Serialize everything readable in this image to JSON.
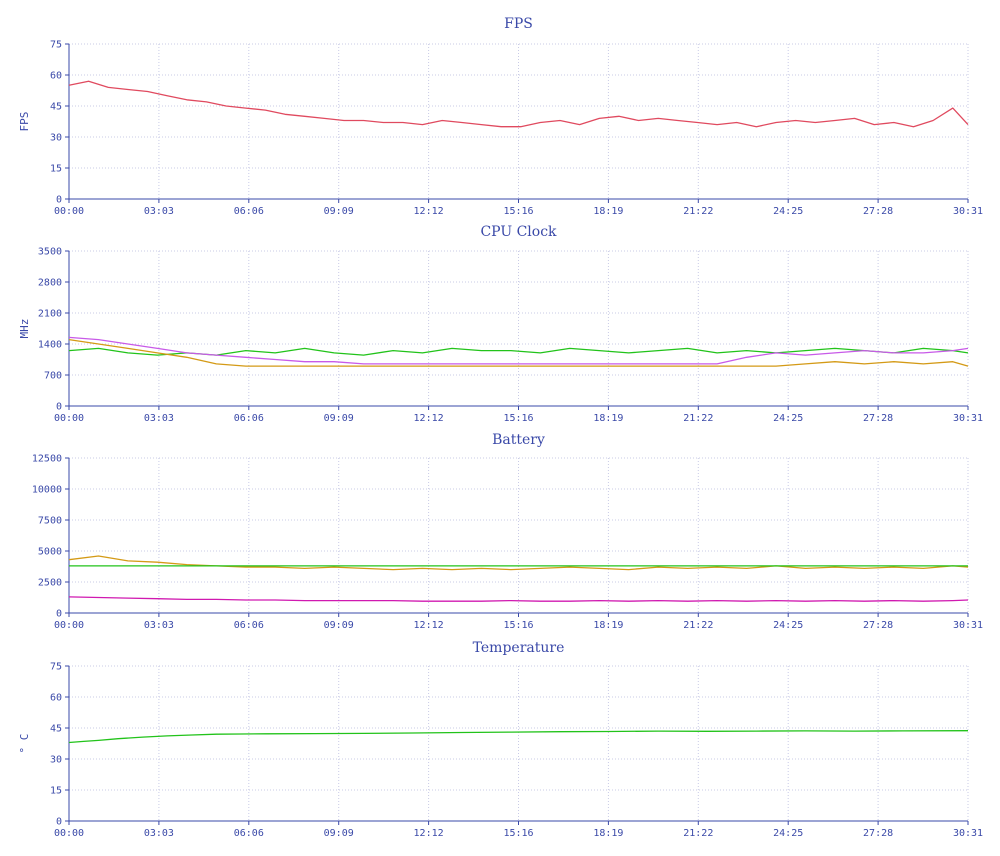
{
  "chart_data": [
    {
      "type": "line",
      "title": "FPS",
      "ylabel": "FPS",
      "xlabel": "",
      "xticks": [
        "00:00",
        "03:03",
        "06:06",
        "09:09",
        "12:12",
        "15:16",
        "18:19",
        "21:22",
        "24:25",
        "27:28",
        "30:31"
      ],
      "yticks": [
        "0",
        "15",
        "30",
        "45",
        "60",
        "75"
      ],
      "xlim_seconds": [
        0,
        1831
      ],
      "ylim": [
        0,
        75
      ],
      "grid": true,
      "series": [
        {
          "color": "#e04a5f",
          "x": [
            0,
            40,
            80,
            120,
            160,
            200,
            240,
            280,
            320,
            360,
            400,
            440,
            480,
            520,
            560,
            600,
            640,
            680,
            720,
            760,
            800,
            840,
            880,
            920,
            960,
            1000,
            1040,
            1080,
            1120,
            1160,
            1200,
            1240,
            1280,
            1320,
            1360,
            1400,
            1440,
            1480,
            1520,
            1560,
            1600,
            1640,
            1680,
            1720,
            1760,
            1800,
            1831
          ],
          "y": [
            55,
            57,
            54,
            53,
            52,
            50,
            48,
            47,
            45,
            44,
            43,
            41,
            40,
            39,
            38,
            38,
            37,
            37,
            36,
            38,
            37,
            36,
            35,
            35,
            37,
            38,
            36,
            39,
            40,
            38,
            39,
            38,
            37,
            36,
            37,
            35,
            37,
            38,
            37,
            38,
            39,
            36,
            37,
            35,
            38,
            44,
            36
          ]
        }
      ]
    },
    {
      "type": "line",
      "title": "CPU Clock",
      "ylabel": "MHz",
      "xlabel": "",
      "xticks": [
        "00:00",
        "03:03",
        "06:06",
        "09:09",
        "12:12",
        "15:16",
        "18:19",
        "21:22",
        "24:25",
        "27:28",
        "30:31"
      ],
      "yticks": [
        "0",
        "700",
        "1400",
        "2100",
        "2800",
        "3500"
      ],
      "xlim_seconds": [
        0,
        1831
      ],
      "ylim": [
        0,
        3500
      ],
      "grid": true,
      "series": [
        {
          "color": "#22c31a",
          "x": [
            0,
            60,
            120,
            180,
            240,
            300,
            360,
            420,
            480,
            540,
            600,
            660,
            720,
            780,
            840,
            900,
            960,
            1020,
            1080,
            1140,
            1200,
            1260,
            1320,
            1380,
            1440,
            1500,
            1560,
            1620,
            1680,
            1740,
            1800,
            1831
          ],
          "y": [
            1250,
            1300,
            1200,
            1150,
            1200,
            1150,
            1250,
            1200,
            1300,
            1200,
            1150,
            1250,
            1200,
            1300,
            1250,
            1250,
            1200,
            1300,
            1250,
            1200,
            1250,
            1300,
            1200,
            1250,
            1200,
            1250,
            1300,
            1250,
            1200,
            1300,
            1250,
            1200
          ]
        },
        {
          "color": "#c85ae8",
          "x": [
            0,
            60,
            120,
            180,
            240,
            300,
            360,
            420,
            480,
            540,
            600,
            660,
            720,
            780,
            840,
            900,
            960,
            1020,
            1080,
            1140,
            1200,
            1260,
            1320,
            1380,
            1440,
            1500,
            1560,
            1620,
            1680,
            1740,
            1800,
            1831
          ],
          "y": [
            1550,
            1500,
            1400,
            1300,
            1200,
            1150,
            1100,
            1050,
            1000,
            1000,
            950,
            950,
            950,
            950,
            950,
            950,
            950,
            950,
            950,
            950,
            950,
            950,
            950,
            1100,
            1200,
            1150,
            1200,
            1250,
            1200,
            1200,
            1250,
            1300
          ]
        },
        {
          "color": "#d49a16",
          "x": [
            0,
            60,
            120,
            180,
            240,
            300,
            360,
            420,
            480,
            540,
            600,
            660,
            720,
            780,
            840,
            900,
            960,
            1020,
            1080,
            1140,
            1200,
            1260,
            1320,
            1380,
            1440,
            1500,
            1560,
            1620,
            1680,
            1740,
            1800,
            1831
          ],
          "y": [
            1500,
            1400,
            1300,
            1200,
            1100,
            950,
            900,
            900,
            900,
            900,
            900,
            900,
            900,
            900,
            900,
            900,
            900,
            900,
            900,
            900,
            900,
            900,
            900,
            900,
            900,
            950,
            1000,
            950,
            1000,
            950,
            1000,
            900
          ]
        }
      ]
    },
    {
      "type": "line",
      "title": "Battery",
      "ylabel": "",
      "xlabel": "",
      "xticks": [
        "00:00",
        "03:03",
        "06:06",
        "09:09",
        "12:12",
        "15:16",
        "18:19",
        "21:22",
        "24:25",
        "27:28",
        "30:31"
      ],
      "yticks": [
        "0",
        "2500",
        "5000",
        "7500",
        "10000",
        "12500"
      ],
      "xlim_seconds": [
        0,
        1831
      ],
      "ylim": [
        0,
        12500
      ],
      "grid": true,
      "series": [
        {
          "color": "#d49a16",
          "x": [
            0,
            60,
            120,
            180,
            240,
            300,
            360,
            420,
            480,
            540,
            600,
            660,
            720,
            780,
            840,
            900,
            960,
            1020,
            1080,
            1140,
            1200,
            1260,
            1320,
            1380,
            1440,
            1500,
            1560,
            1620,
            1680,
            1740,
            1800,
            1831
          ],
          "y": [
            4300,
            4600,
            4200,
            4100,
            3900,
            3800,
            3700,
            3700,
            3600,
            3700,
            3600,
            3500,
            3600,
            3500,
            3600,
            3500,
            3600,
            3700,
            3600,
            3500,
            3700,
            3600,
            3700,
            3600,
            3800,
            3600,
            3700,
            3600,
            3700,
            3600,
            3800,
            3700
          ]
        },
        {
          "color": "#22c31a",
          "x": [
            0,
            1831
          ],
          "y": [
            3800,
            3800
          ]
        },
        {
          "color": "#d019b0",
          "x": [
            0,
            60,
            120,
            180,
            240,
            300,
            360,
            420,
            480,
            540,
            600,
            660,
            720,
            780,
            840,
            900,
            960,
            1020,
            1080,
            1140,
            1200,
            1260,
            1320,
            1380,
            1440,
            1500,
            1560,
            1620,
            1680,
            1740,
            1800,
            1831
          ],
          "y": [
            1300,
            1250,
            1200,
            1150,
            1100,
            1100,
            1050,
            1050,
            1000,
            1000,
            1000,
            1000,
            950,
            950,
            950,
            1000,
            950,
            950,
            1000,
            950,
            1000,
            950,
            1000,
            950,
            1000,
            950,
            1000,
            950,
            1000,
            950,
            1000,
            1050
          ]
        }
      ]
    },
    {
      "type": "line",
      "title": "Temperature",
      "ylabel": "° C",
      "xlabel": "",
      "xticks": [
        "00:00",
        "03:03",
        "06:06",
        "09:09",
        "12:12",
        "15:16",
        "18:19",
        "21:22",
        "24:25",
        "27:28",
        "30:31"
      ],
      "yticks": [
        "0",
        "15",
        "30",
        "45",
        "60",
        "75"
      ],
      "xlim_seconds": [
        0,
        1831
      ],
      "ylim": [
        0,
        75
      ],
      "grid": true,
      "series": [
        {
          "color": "#22c31a",
          "x": [
            0,
            30,
            60,
            100,
            150,
            200,
            250,
            300,
            350,
            400,
            500,
            600,
            700,
            800,
            900,
            1000,
            1100,
            1200,
            1300,
            1400,
            1500,
            1600,
            1700,
            1831
          ],
          "y": [
            38,
            38.5,
            39,
            39.8,
            40.6,
            41.2,
            41.6,
            42,
            42.1,
            42.2,
            42.3,
            42.4,
            42.6,
            42.8,
            43,
            43.2,
            43.3,
            43.5,
            43.4,
            43.5,
            43.6,
            43.5,
            43.6,
            43.7
          ]
        }
      ]
    }
  ]
}
